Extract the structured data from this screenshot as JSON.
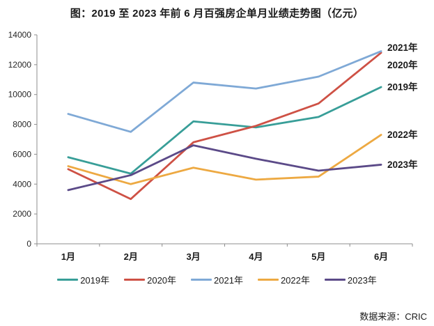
{
  "title": "图：2019 至 2023 年前 6 月百强房企单月业绩走势图（亿元）",
  "source": "数据来源：CRIC",
  "chart_data": {
    "type": "line",
    "title": "图：2019 至 2023 年前 6 月百强房企单月业绩走势图（亿元）",
    "unit": "亿元",
    "categories": [
      "1月",
      "2月",
      "3月",
      "4月",
      "5月",
      "6月"
    ],
    "xlabel": "",
    "ylabel": "",
    "ylim": [
      0,
      14000
    ],
    "ytick_step": 2000,
    "ytick_labels": [
      "0",
      "2000",
      "4000",
      "6000",
      "8000",
      "10000",
      "12000",
      "14000"
    ],
    "grid": false,
    "legend_position": "bottom",
    "end_labels": true,
    "series": [
      {
        "name": "2019年",
        "color": "#389E98",
        "values": [
          5800,
          4700,
          8200,
          7800,
          8500,
          10500
        ]
      },
      {
        "name": "2020年",
        "color": "#CE5145",
        "values": [
          5000,
          3000,
          6800,
          7900,
          9400,
          12800
        ]
      },
      {
        "name": "2021年",
        "color": "#7FA9D6",
        "values": [
          8700,
          7500,
          10800,
          10400,
          11200,
          12900
        ]
      },
      {
        "name": "2022年",
        "color": "#EDA942",
        "values": [
          5200,
          4000,
          5100,
          4300,
          4500,
          7300
        ]
      },
      {
        "name": "2023年",
        "color": "#5B4A88",
        "values": [
          3600,
          4600,
          6600,
          5700,
          4900,
          5300
        ]
      }
    ]
  }
}
